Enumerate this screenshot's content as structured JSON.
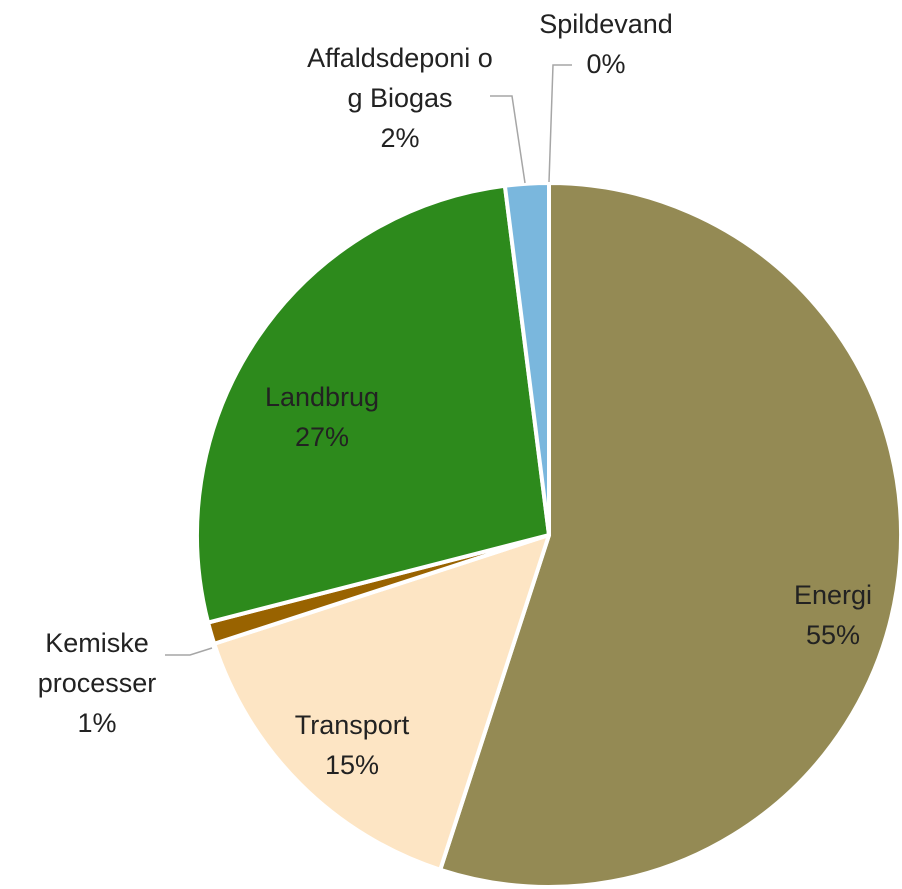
{
  "chart_data": {
    "type": "pie",
    "categories": [
      "Energi",
      "Transport",
      "Kemiske processer",
      "Landbrug",
      "Affaldsdeponi og Biogas",
      "Spildevand"
    ],
    "values": [
      55,
      15,
      1,
      27,
      2,
      0
    ],
    "value_labels": [
      "55%",
      "15%",
      "1%",
      "27%",
      "2%",
      "0%"
    ],
    "colors": [
      "#948a54",
      "#fde5c4",
      "#996300",
      "#2d8a1c",
      "#7ab7dd",
      "#4f81bd"
    ]
  }
}
